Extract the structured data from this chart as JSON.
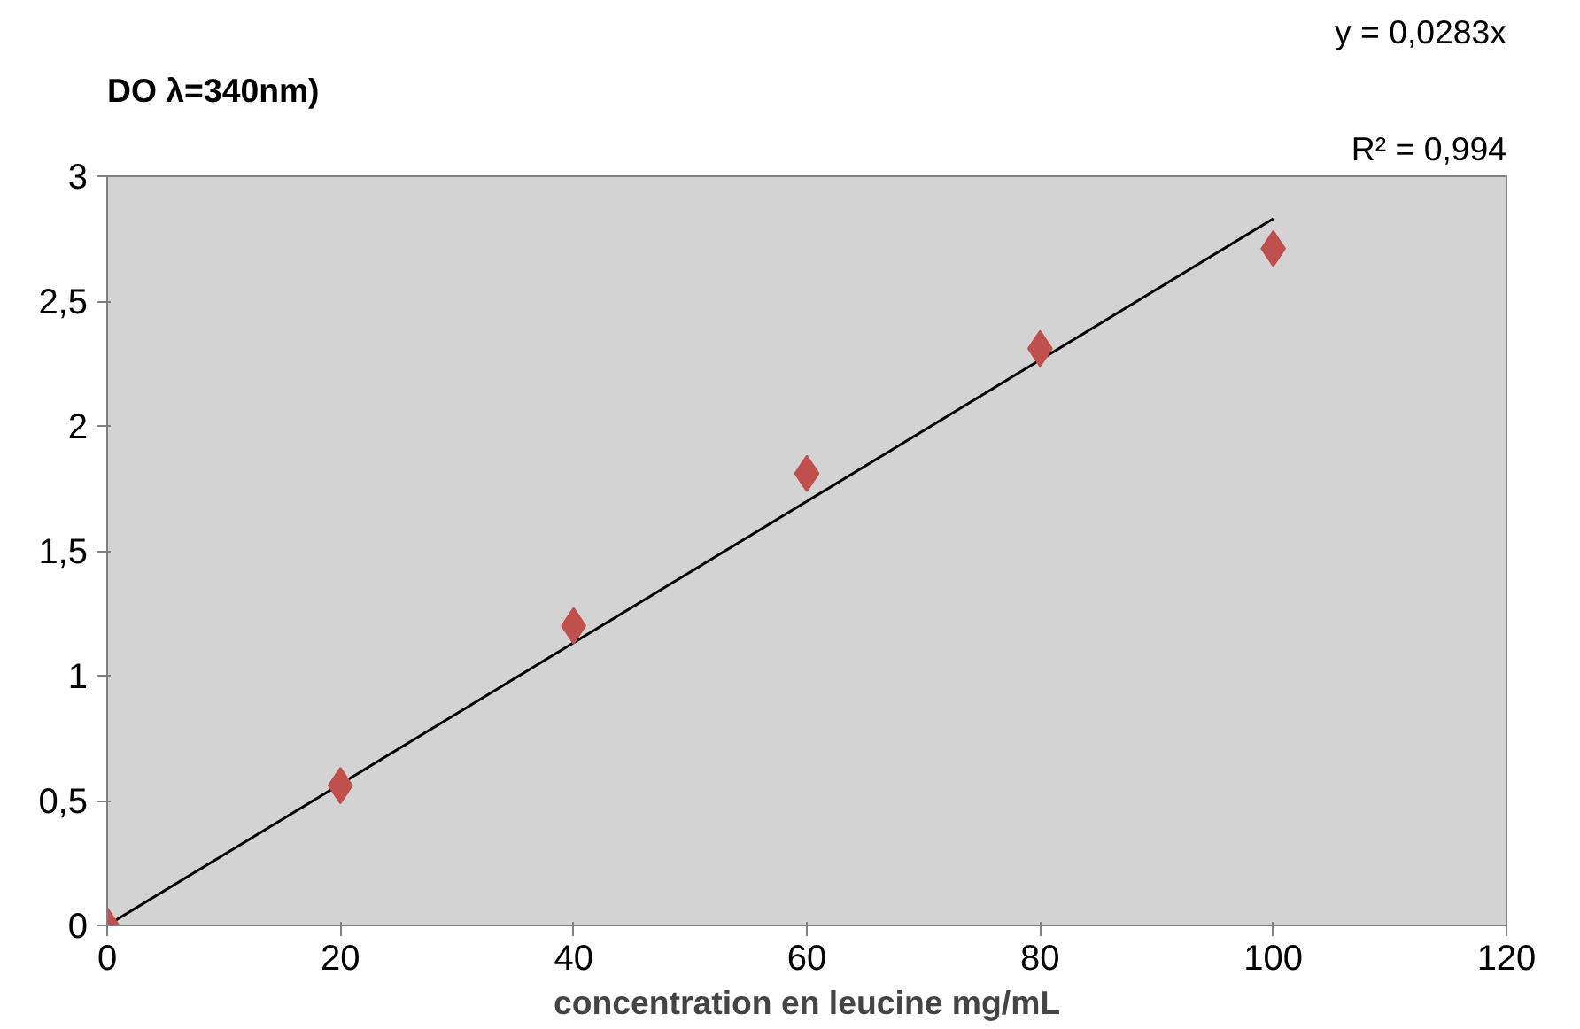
{
  "chart_data": {
    "type": "scatter",
    "xlabel": "concentration en leucine mg/mL",
    "ylabel": "DO λ=340nm)",
    "annotations": [
      "y = 0,0283x",
      "R² = 0,994"
    ],
    "x": [
      0,
      20,
      40,
      60,
      80,
      100
    ],
    "series": [
      {
        "color": "#c0504d",
        "marker": "diamond",
        "values": [
          0,
          0.56,
          1.2,
          1.81,
          2.31,
          2.71
        ]
      },
      {
        "type": "line",
        "color": "#000000",
        "x": [
          0,
          100
        ],
        "values": [
          0,
          2.83
        ]
      }
    ],
    "xlim": [
      0,
      120
    ],
    "ylim": [
      0,
      3
    ],
    "xticks": [
      0,
      20,
      40,
      60,
      80,
      100,
      120
    ],
    "yticks": [
      0,
      {
        "value": 0.5,
        "label": "0,5"
      },
      1,
      {
        "value": 1.5,
        "label": "1,5"
      },
      2,
      {
        "value": 2.5,
        "label": "2,5"
      },
      3
    ],
    "grid": false
  }
}
